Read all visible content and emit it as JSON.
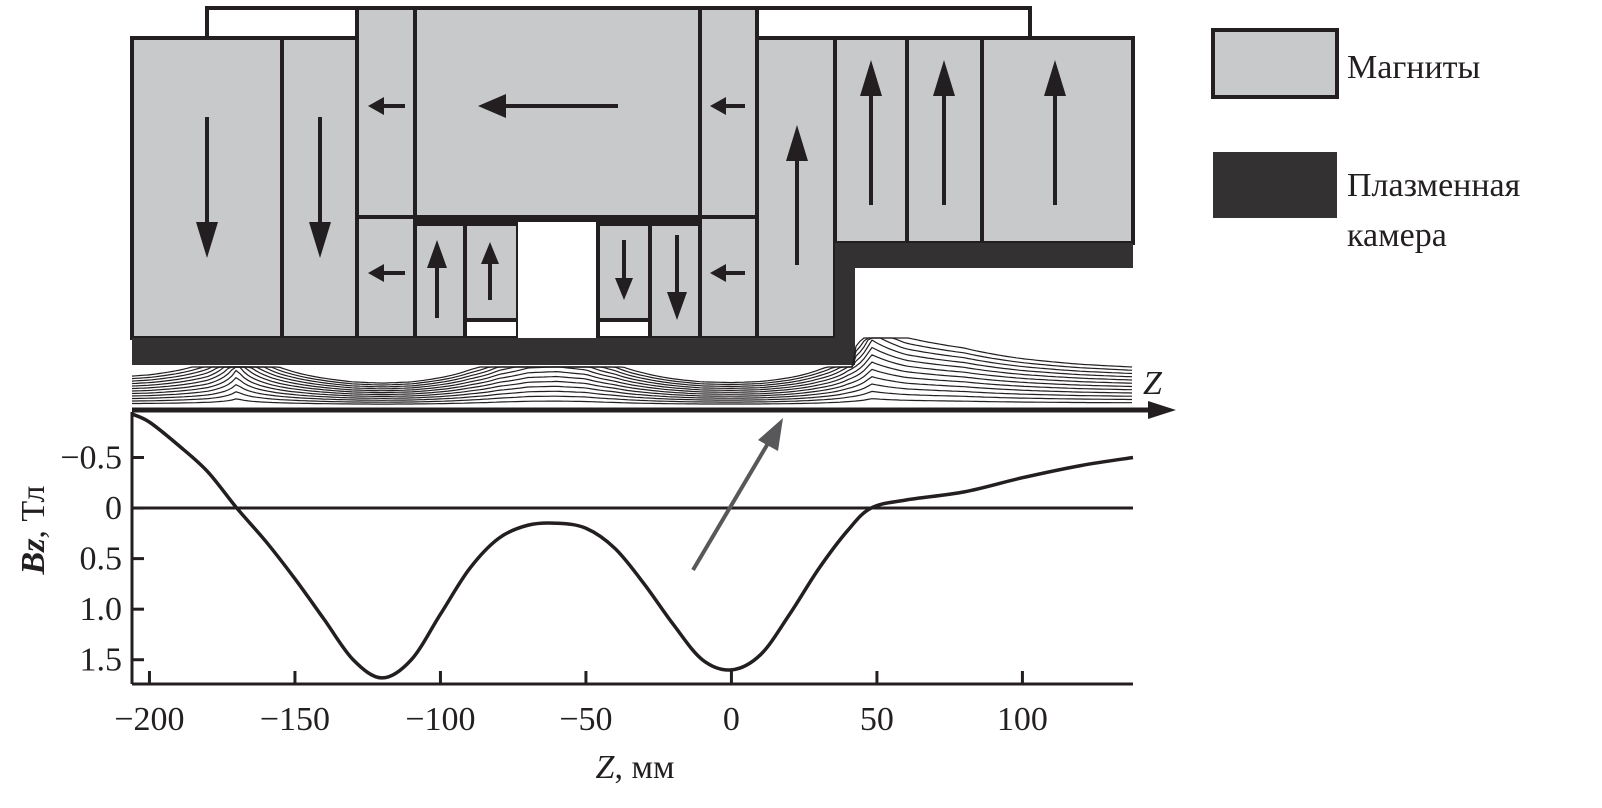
{
  "legend": {
    "magnets": {
      "label": "Магниты",
      "color": "#c8c9cb"
    },
    "chamber": {
      "label_line1": "Плазменная",
      "label_line2": "камера",
      "color": "#333132"
    }
  },
  "diagram": {
    "axis_label": "Z",
    "pointer_arrow_color": "#58585a"
  },
  "chart_data": {
    "type": "line",
    "xlabel": "Z, мм",
    "ylabel_main": "Bz",
    "ylabel_unit": ", Тл",
    "xlim": [
      -206,
      138
    ],
    "ylim": [
      -0.95,
      1.74
    ],
    "y_inverted": true,
    "grid": false,
    "x_ticks": [
      -200,
      -150,
      -100,
      -50,
      0,
      50,
      100
    ],
    "x_tick_labels": [
      "−200",
      "−150",
      "−100",
      "−50",
      "0",
      "50",
      "100"
    ],
    "y_ticks": [
      -0.5,
      0,
      0.5,
      1.0,
      1.5
    ],
    "y_tick_labels": [
      "−0.5",
      "0",
      "0.5",
      "1.0",
      "1.5"
    ],
    "reference_line": 0,
    "series": [
      {
        "x": [
          -206,
          -200,
          -190,
          -180,
          -170,
          -160,
          -150,
          -140,
          -130,
          -120,
          -110,
          -100,
          -90,
          -80,
          -70,
          -60,
          -50,
          -40,
          -30,
          -20,
          -10,
          0,
          10,
          20,
          30,
          40,
          48,
          60,
          80,
          100,
          120,
          138
        ],
        "y": [
          -0.93,
          -0.85,
          -0.62,
          -0.36,
          0,
          0.33,
          0.7,
          1.1,
          1.5,
          1.68,
          1.5,
          1.05,
          0.6,
          0.3,
          0.17,
          0.15,
          0.2,
          0.4,
          0.75,
          1.15,
          1.5,
          1.6,
          1.45,
          1.05,
          0.6,
          0.22,
          0,
          -0.08,
          -0.16,
          -0.3,
          -0.42,
          -0.5
        ]
      }
    ]
  }
}
